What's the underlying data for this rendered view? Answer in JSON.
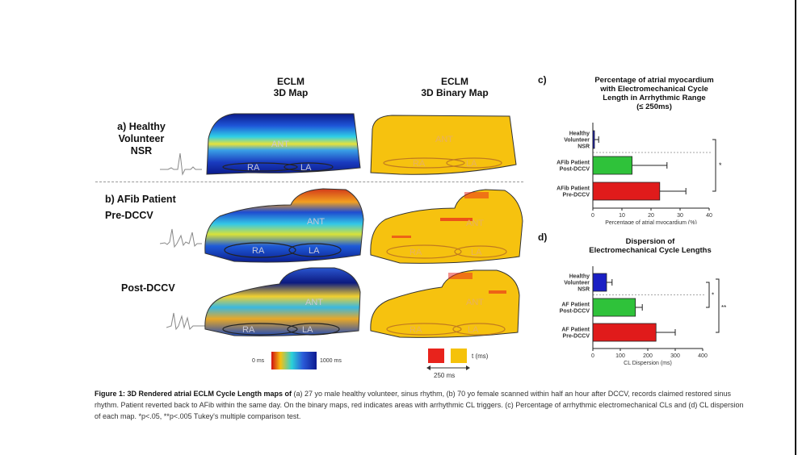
{
  "headers": {
    "eclm_map": "ECLM\n3D Map",
    "eclm_binary": "ECLM\n3D Binary Map"
  },
  "rows": {
    "a_label": "a) Healthy\nVolunteer\nNSR",
    "b_label": "b) AFib Patient\nPre-DCCV",
    "post_label": "Post-DCCV"
  },
  "map_labels": {
    "ant": "ANT",
    "ra": "RA",
    "la": "LA"
  },
  "colorbar": {
    "min": "0 ms",
    "max": "1000 ms"
  },
  "binary_legend": {
    "t_label": "t (ms)",
    "threshold": "250 ms",
    "colors": [
      "#e8231c",
      "#f5c20a"
    ]
  },
  "colors": {
    "green": "#2fc23a",
    "blue": "#1a1fc4",
    "red": "#e01b1b",
    "map_yellow": "#f6c20f"
  },
  "chart_data": [
    {
      "panel": "c)",
      "type": "bar",
      "orientation": "horizontal",
      "title": "Percentage of atrial myocardium\nwith Electromechanical Cycle\nLength in Arrhythmic Range\n(≤ 250ms)",
      "categories": [
        "Healthy\nVolunteer\nNSR",
        "AFib Patient\nPost-DCCV",
        "AFib Patient\nPre-DCCV"
      ],
      "values": [
        0.5,
        13.5,
        23
      ],
      "errors": [
        1.5,
        12,
        9
      ],
      "colors": [
        "#1a1fc4",
        "#2fc23a",
        "#e01b1b"
      ],
      "xlabel": "Percentage of atrial myocardium (%)",
      "xlim": [
        0,
        40
      ],
      "xticks": [
        "0",
        "10",
        "20",
        "30",
        "40"
      ],
      "significance": [
        "*"
      ]
    },
    {
      "panel": "d)",
      "type": "bar",
      "orientation": "horizontal",
      "title": "Dispersion of\nElectromechanical Cycle Lengths",
      "categories": [
        "Healthy\nVolunteer\nNSR",
        "AF Patient\nPost-DCCV",
        "AF Patient\nPre-DCCV"
      ],
      "values": [
        50,
        155,
        230
      ],
      "errors": [
        20,
        25,
        70
      ],
      "colors": [
        "#1a1fc4",
        "#2fc23a",
        "#e01b1b"
      ],
      "xlabel": "CL Dispersion (ms)",
      "xlim": [
        0,
        400
      ],
      "xticks": [
        "0",
        "100",
        "200",
        "300",
        "400"
      ],
      "significance": [
        "*",
        "**"
      ]
    }
  ],
  "caption": {
    "bold": "Figure 1: 3D Rendered atrial ECLM Cycle Length maps of",
    "text": " (a) 27 yo male healthy volunteer, sinus rhythm, (b) 70 yo female scanned within half an hour after DCCV, records claimed restored sinus rhythm. Patient reverted back to AFib within the same day. On the binary maps, red indicates areas with arrhythmic CL triggers. (c) Percentage of arrhythmic electromechanical CLs and (d) CL dispersion of each map. *p<.05, **p<.005 Tukey's multiple comparison test."
  }
}
